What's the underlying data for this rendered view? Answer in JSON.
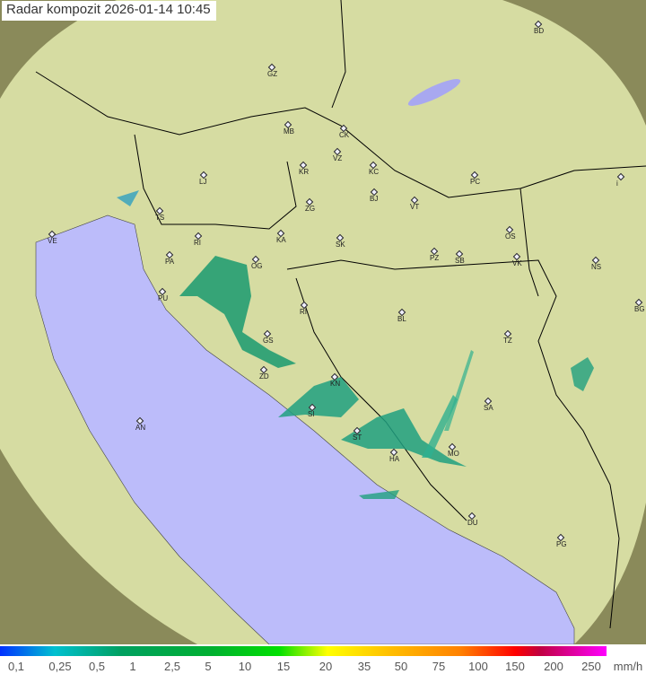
{
  "title": "Radar kompozit  2026-01-14   10:45",
  "colors": {
    "sea": "#bcbcfa",
    "land": "#d9dea0",
    "coverage_outside": "#8a8a5a",
    "border": "#000000"
  },
  "cities": [
    "BD",
    "GZ",
    "MB",
    "CK",
    "VZ",
    "KR",
    "KC",
    "PC",
    "LJ",
    "ZG",
    "BJ",
    "VT",
    "TS",
    "VE",
    "KA",
    "SK",
    "OS",
    "RI",
    "PA",
    "PZ",
    "SB",
    "VK",
    "NS",
    "OG",
    "PU",
    "RI",
    "BL",
    "BG",
    "GS",
    "TZ",
    "ZD",
    "KN",
    "SA",
    "SI",
    "AN",
    "ST",
    "MO",
    "HA",
    "DU",
    "PG",
    "i"
  ],
  "legend": {
    "ticks": [
      "0,1",
      "0,25",
      "0,5",
      "1",
      "2,5",
      "5",
      "10",
      "15",
      "20",
      "35",
      "50",
      "75",
      "100",
      "150",
      "200",
      "250"
    ],
    "unit": "mm/h"
  }
}
